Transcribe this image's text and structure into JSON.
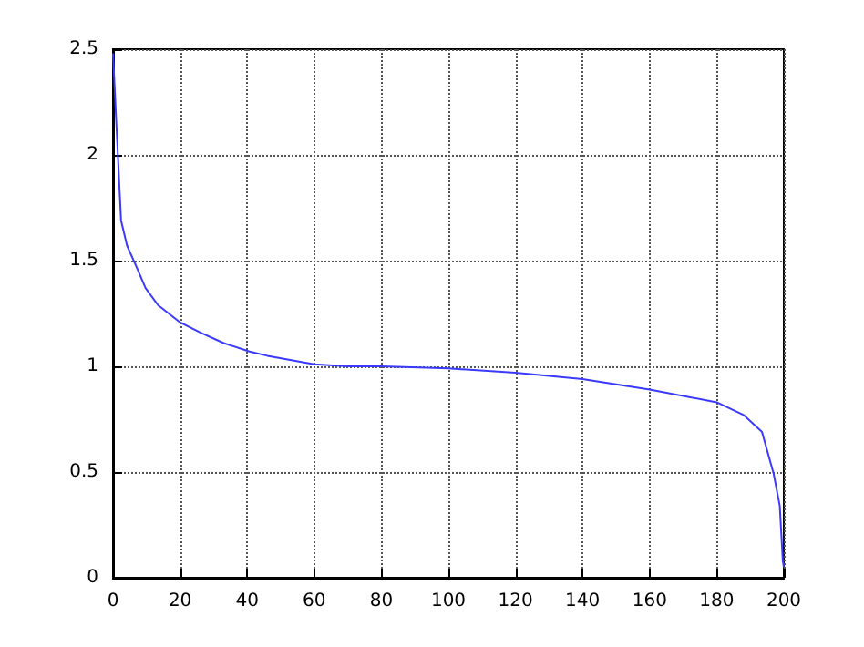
{
  "chart_data": {
    "type": "line",
    "x": [
      0,
      0.9,
      2.4,
      4.2,
      7,
      9.7,
      13.4,
      19.8,
      26,
      33,
      40.7,
      46,
      60,
      70,
      80,
      100,
      120,
      140,
      160,
      180,
      188,
      193.5,
      197,
      198.8,
      199.7,
      200
    ],
    "series": [
      {
        "color": "#3a3aff",
        "values": [
          2.48,
          2.18,
          1.69,
          1.57,
          1.47,
          1.37,
          1.29,
          1.21,
          1.16,
          1.11,
          1.07,
          1.05,
          1.01,
          1.0,
          1.0,
          0.99,
          0.97,
          0.94,
          0.89,
          0.83,
          0.77,
          0.69,
          0.49,
          0.34,
          0.08,
          0.05
        ]
      }
    ],
    "xlim": [
      0,
      200
    ],
    "xticks": [
      0,
      20,
      40,
      60,
      80,
      100,
      120,
      140,
      160,
      180,
      200
    ],
    "ylim": [
      0,
      2.5
    ],
    "yticks": [
      0,
      0.5,
      1,
      1.5,
      2,
      2.5
    ],
    "grid": true,
    "marker": "none",
    "line_style": "solid"
  }
}
